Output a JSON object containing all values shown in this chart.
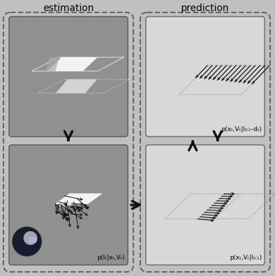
{
  "bg_color": "#c0c0c0",
  "title_estimation": "estimation",
  "title_prediction": "prediction",
  "label_B": "p(Iₜ|xₜ,Vₜ)",
  "label_C": "p(xₜ,Vₜ|I₀:ₜ-dₜ)",
  "label_D": "p(xₜ,Vₜ|I₀:ₜ)",
  "bg_dark": "#909090",
  "bg_light": "#d8d8d8",
  "stroke_light": "#bbbbbb",
  "stroke_dark": "#444444",
  "arrow_color": "#111111"
}
